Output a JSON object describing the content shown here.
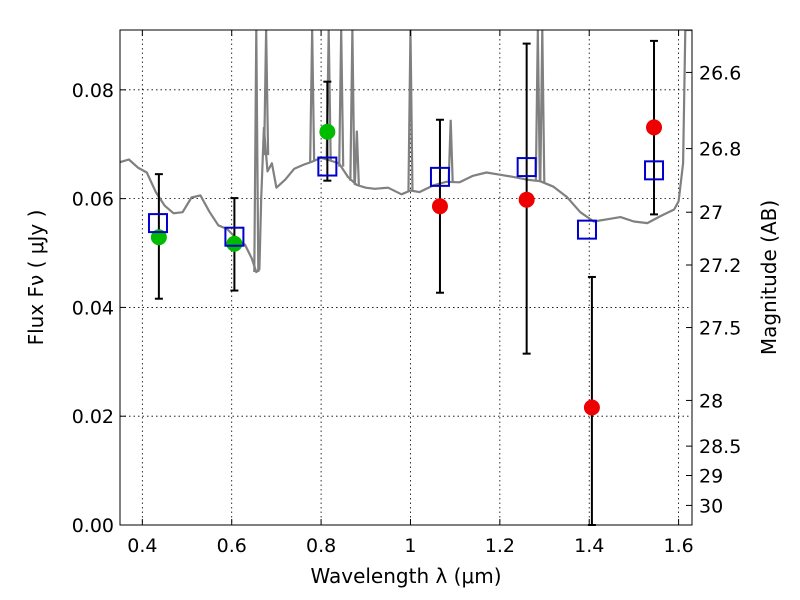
{
  "chart_data": {
    "type": "scatter",
    "xlabel": "Wavelength  λ (μm)",
    "ylabel": "Flux  Fν  ( μJy )",
    "y2label": "Magnitude (AB)",
    "xlim": [
      0.35,
      1.63
    ],
    "ylim": [
      0.0,
      0.091
    ],
    "grid": true,
    "x_ticks": [
      0.4,
      0.6,
      0.8,
      1.0,
      1.2,
      1.4,
      1.6
    ],
    "x_tick_labels": [
      "0.4",
      "0.6",
      "0.8",
      "1",
      "1.2",
      "1.4",
      "1.6"
    ],
    "y_ticks": [
      0.0,
      0.02,
      0.04,
      0.06,
      0.08
    ],
    "y_tick_labels": [
      "0.00",
      "0.02",
      "0.04",
      "0.06",
      "0.08"
    ],
    "mag_ticks": [
      {
        "label": "26.6",
        "flux": 0.0832
      },
      {
        "label": "26.8",
        "flux": 0.0692
      },
      {
        "label": "27",
        "flux": 0.0575
      },
      {
        "label": "27.2",
        "flux": 0.0478
      },
      {
        "label": "27.5",
        "flux": 0.0363
      },
      {
        "label": "28",
        "flux": 0.0229
      },
      {
        "label": "28.5",
        "flux": 0.0145
      },
      {
        "label": "29",
        "flux": 0.0091
      },
      {
        "label": "30",
        "flux": 0.0036
      }
    ],
    "colors": {
      "model": "#808080",
      "green": "#00bb00",
      "red": "#ee0000",
      "box": "#0000cc",
      "errorbar": "#000000"
    },
    "observed": [
      {
        "x": 0.437,
        "y": 0.0529,
        "yerr_low": 0.0416,
        "yerr_high": 0.0645,
        "color": "green"
      },
      {
        "x": 0.606,
        "y": 0.0517,
        "yerr_low": 0.0431,
        "yerr_high": 0.0601,
        "color": "green"
      },
      {
        "x": 0.814,
        "y": 0.0723,
        "yerr_low": 0.0633,
        "yerr_high": 0.0815,
        "color": "green"
      },
      {
        "x": 1.066,
        "y": 0.0586,
        "yerr_low": 0.0427,
        "yerr_high": 0.0745,
        "color": "red"
      },
      {
        "x": 1.26,
        "y": 0.0598,
        "yerr_low": 0.0315,
        "yerr_high": 0.0885,
        "color": "red"
      },
      {
        "x": 1.406,
        "y": 0.0216,
        "yerr_low": 0.0,
        "yerr_high": 0.0456,
        "color": "red"
      },
      {
        "x": 1.545,
        "y": 0.0731,
        "yerr_low": 0.0571,
        "yerr_high": 0.089,
        "color": "red"
      }
    ],
    "model_photometry": [
      {
        "x": 0.435,
        "y": 0.0555
      },
      {
        "x": 0.606,
        "y": 0.053
      },
      {
        "x": 0.814,
        "y": 0.0659
      },
      {
        "x": 1.066,
        "y": 0.064
      },
      {
        "x": 1.26,
        "y": 0.0658
      },
      {
        "x": 1.395,
        "y": 0.0543
      },
      {
        "x": 1.545,
        "y": 0.0652
      }
    ],
    "model_spectrum": [
      [
        0.35,
        0.0667
      ],
      [
        0.37,
        0.0672
      ],
      [
        0.39,
        0.0657
      ],
      [
        0.41,
        0.0648
      ],
      [
        0.43,
        0.0612
      ],
      [
        0.45,
        0.0587
      ],
      [
        0.47,
        0.0573
      ],
      [
        0.49,
        0.0575
      ],
      [
        0.51,
        0.0602
      ],
      [
        0.53,
        0.0606
      ],
      [
        0.55,
        0.0576
      ],
      [
        0.57,
        0.0551
      ],
      [
        0.59,
        0.0544
      ],
      [
        0.61,
        0.0527
      ],
      [
        0.63,
        0.0515
      ],
      [
        0.645,
        0.049
      ],
      [
        0.655,
        0.0465
      ],
      [
        0.662,
        0.047
      ],
      [
        0.666,
        0.06
      ],
      [
        0.672,
        0.073
      ],
      [
        0.68,
        0.065
      ],
      [
        0.69,
        0.0665
      ],
      [
        0.7,
        0.062
      ],
      [
        0.72,
        0.0635
      ],
      [
        0.74,
        0.0655
      ],
      [
        0.76,
        0.0662
      ],
      [
        0.78,
        0.0668
      ],
      [
        0.8,
        0.0675
      ],
      [
        0.82,
        0.067
      ],
      [
        0.84,
        0.0665
      ],
      [
        0.86,
        0.064
      ],
      [
        0.88,
        0.0625
      ],
      [
        0.9,
        0.062
      ],
      [
        0.92,
        0.0618
      ],
      [
        0.95,
        0.062
      ],
      [
        0.98,
        0.0608
      ],
      [
        1.0,
        0.0615
      ],
      [
        1.02,
        0.0612
      ],
      [
        1.05,
        0.0624
      ],
      [
        1.08,
        0.0631
      ],
      [
        1.11,
        0.063
      ],
      [
        1.14,
        0.0642
      ],
      [
        1.17,
        0.0648
      ],
      [
        1.2,
        0.0644
      ],
      [
        1.23,
        0.064
      ],
      [
        1.26,
        0.0635
      ],
      [
        1.29,
        0.0632
      ],
      [
        1.32,
        0.0622
      ],
      [
        1.35,
        0.0603
      ],
      [
        1.38,
        0.0575
      ],
      [
        1.41,
        0.0558
      ],
      [
        1.44,
        0.0562
      ],
      [
        1.47,
        0.0566
      ],
      [
        1.5,
        0.0558
      ],
      [
        1.53,
        0.0555
      ],
      [
        1.56,
        0.0568
      ],
      [
        1.59,
        0.058
      ],
      [
        1.6,
        0.0595
      ],
      [
        1.61,
        0.0665
      ],
      [
        1.615,
        0.091
      ],
      [
        1.63,
        0.091
      ]
    ],
    "model_emission_lines": [
      {
        "x": 0.655,
        "peak": 0.091
      },
      {
        "x": 0.677,
        "peak": 0.091
      },
      {
        "x": 0.78,
        "peak": 0.091
      },
      {
        "x": 0.817,
        "peak": 0.091
      },
      {
        "x": 0.845,
        "peak": 0.091
      },
      {
        "x": 0.87,
        "peak": 0.091
      },
      {
        "x": 0.88,
        "peak": 0.0725
      },
      {
        "x": 1.0,
        "peak": 0.091
      },
      {
        "x": 1.09,
        "peak": 0.0745
      },
      {
        "x": 1.285,
        "peak": 0.091
      },
      {
        "x": 1.295,
        "peak": 0.091
      }
    ]
  }
}
